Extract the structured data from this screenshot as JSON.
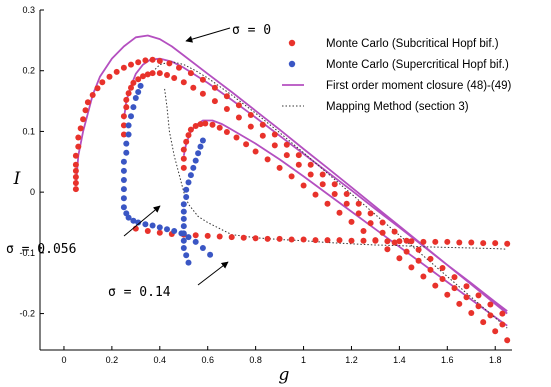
{
  "chart_data": {
    "type": "scatter",
    "xlabel": "g",
    "ylabel": "I",
    "xlim": [
      -0.1,
      1.87
    ],
    "ylim": [
      -0.26,
      0.3
    ],
    "x_ticks": [
      "0",
      "0.2",
      "0.4",
      "0.6",
      "0.8",
      "1",
      "1.2",
      "1.4",
      "1.6",
      "1.8"
    ],
    "y_ticks": [
      "0.3",
      "0.2",
      "0.1",
      "0",
      "-0.1",
      "-0.2"
    ],
    "legend_position": "top-right",
    "legend": [
      {
        "label": "Monte Carlo (Subcritical Hopf bif.)",
        "style": "dot",
        "color": "#e8322b"
      },
      {
        "label": "Monte Carlo (Supercritical Hopf bif.)",
        "style": "dot",
        "color": "#3a56c4"
      },
      {
        "label": "First order moment closure (48)-(49)",
        "style": "line",
        "color": "#b44fc0"
      },
      {
        "label": "Mapping Method (section 3)",
        "style": "dotted",
        "color": "#333333"
      }
    ],
    "annotations": [
      {
        "text": "σ = 0",
        "x": 0.5,
        "y": 0.27
      },
      {
        "text": "σ = 0.056",
        "x": -0.1,
        "y": -0.06
      },
      {
        "text": "σ = 0.14",
        "x": 0.0,
        "y": -0.17
      }
    ],
    "series": [
      {
        "name": "Monte Carlo (Subcritical Hopf bif.)",
        "color": "#e8322b",
        "x": [
          0.05,
          0.05,
          0.05,
          0.05,
          0.05,
          0.05,
          0.06,
          0.06,
          0.07,
          0.08,
          0.09,
          0.1,
          0.12,
          0.14,
          0.16,
          0.19,
          0.22,
          0.25,
          0.28,
          0.31,
          0.34,
          0.37,
          0.4,
          0.44,
          0.48,
          0.53,
          0.58,
          0.63,
          0.68,
          0.73,
          0.78,
          0.83,
          0.88,
          0.93,
          0.98,
          1.03,
          1.08,
          1.13,
          1.18,
          1.23,
          1.28,
          1.33,
          1.38,
          1.43,
          1.48,
          1.53,
          1.58,
          1.63,
          1.68,
          1.73,
          1.78,
          1.83,
          0.25,
          0.25,
          0.25,
          0.26,
          0.26,
          0.27,
          0.28,
          0.29,
          0.31,
          0.33,
          0.35,
          0.37,
          0.4,
          0.43,
          0.46,
          0.5,
          0.54,
          0.58,
          0.63,
          0.68,
          0.73,
          0.78,
          0.83,
          0.88,
          0.93,
          0.98,
          1.03,
          1.08,
          1.13,
          1.18,
          1.23,
          1.28,
          1.33,
          1.38,
          1.43,
          1.48,
          1.53,
          1.58,
          1.63,
          1.68,
          1.73,
          1.78,
          1.83,
          0.5,
          0.5,
          0.5,
          0.51,
          0.52,
          0.53,
          0.55,
          0.57,
          0.59,
          0.62,
          0.65,
          0.68,
          0.72,
          0.76,
          0.8,
          0.85,
          0.9,
          0.95,
          1.0,
          1.05,
          1.1,
          1.15,
          1.2,
          1.25,
          1.3,
          1.35,
          1.4,
          1.45,
          1.5,
          1.55,
          1.6,
          1.65,
          1.7,
          1.75,
          1.8,
          1.85,
          0.3,
          0.35,
          0.4,
          0.45,
          0.5,
          0.55,
          0.6,
          0.65,
          0.7,
          0.75,
          0.8,
          0.85,
          0.9,
          0.95,
          1.0,
          1.05,
          1.1,
          1.15,
          1.2,
          1.25,
          1.3,
          1.35,
          1.4,
          1.45,
          1.5,
          1.55,
          1.6,
          1.65,
          1.7,
          1.75,
          1.8,
          1.85
        ],
        "y": [
          0.005,
          0.015,
          0.025,
          0.035,
          0.045,
          0.06,
          0.075,
          0.09,
          0.105,
          0.12,
          0.135,
          0.148,
          0.16,
          0.171,
          0.181,
          0.19,
          0.198,
          0.205,
          0.21,
          0.214,
          0.217,
          0.218,
          0.216,
          0.212,
          0.205,
          0.196,
          0.185,
          0.172,
          0.158,
          0.143,
          0.127,
          0.111,
          0.095,
          0.078,
          0.061,
          0.045,
          0.029,
          0.013,
          -0.003,
          -0.019,
          -0.035,
          -0.05,
          -0.065,
          -0.08,
          -0.095,
          -0.11,
          -0.125,
          -0.14,
          -0.155,
          -0.17,
          -0.185,
          -0.2,
          0.095,
          0.11,
          0.125,
          0.14,
          0.152,
          0.163,
          0.172,
          0.18,
          0.186,
          0.191,
          0.194,
          0.196,
          0.196,
          0.193,
          0.188,
          0.181,
          0.172,
          0.162,
          0.15,
          0.137,
          0.123,
          0.108,
          0.093,
          0.077,
          0.061,
          0.045,
          0.029,
          0.013,
          -0.003,
          -0.019,
          -0.035,
          -0.051,
          -0.067,
          -0.083,
          -0.098,
          -0.113,
          -0.128,
          -0.143,
          -0.158,
          -0.173,
          -0.188,
          -0.203,
          -0.218,
          0.04,
          0.055,
          0.07,
          0.083,
          0.094,
          0.103,
          0.109,
          0.112,
          0.113,
          0.111,
          0.106,
          0.099,
          0.09,
          0.079,
          0.067,
          0.054,
          0.04,
          0.026,
          0.011,
          -0.004,
          -0.019,
          -0.034,
          -0.049,
          -0.064,
          -0.079,
          -0.094,
          -0.109,
          -0.124,
          -0.139,
          -0.154,
          -0.169,
          -0.184,
          -0.199,
          -0.214,
          -0.229,
          -0.244,
          -0.06,
          -0.064,
          -0.067,
          -0.069,
          -0.07,
          -0.071,
          -0.072,
          -0.073,
          -0.074,
          -0.075,
          -0.076,
          -0.077,
          -0.077,
          -0.078,
          -0.078,
          -0.079,
          -0.079,
          -0.079,
          -0.08,
          -0.08,
          -0.08,
          -0.081,
          -0.081,
          -0.081,
          -0.082,
          -0.082,
          -0.082,
          -0.083,
          -0.083,
          -0.084,
          -0.084,
          -0.085
        ]
      },
      {
        "name": "Monte Carlo (Supercritical Hopf bif.)",
        "color": "#3a56c4",
        "x": [
          0.32,
          0.31,
          0.3,
          0.29,
          0.28,
          0.27,
          0.27,
          0.26,
          0.26,
          0.25,
          0.25,
          0.25,
          0.25,
          0.25,
          0.25,
          0.26,
          0.27,
          0.29,
          0.31,
          0.34,
          0.37,
          0.4,
          0.43,
          0.46,
          0.49,
          0.52,
          0.55,
          0.58,
          0.61,
          0.58,
          0.57,
          0.56,
          0.55,
          0.54,
          0.53,
          0.52,
          0.51,
          0.51,
          0.5,
          0.5,
          0.5,
          0.5,
          0.5,
          0.5,
          0.5,
          0.51,
          0.52
        ],
        "y": [
          0.175,
          0.165,
          0.155,
          0.14,
          0.125,
          0.11,
          0.095,
          0.08,
          0.065,
          0.05,
          0.035,
          0.02,
          0.005,
          -0.01,
          -0.025,
          -0.035,
          -0.042,
          -0.047,
          -0.05,
          -0.053,
          -0.055,
          -0.058,
          -0.061,
          -0.064,
          -0.068,
          -0.074,
          -0.082,
          -0.092,
          -0.103,
          0.085,
          0.075,
          0.064,
          0.052,
          0.04,
          0.028,
          0.016,
          0.004,
          -0.008,
          -0.02,
          -0.032,
          -0.044,
          -0.056,
          -0.068,
          -0.08,
          -0.092,
          -0.104,
          -0.116
        ]
      },
      {
        "name": "First order moment closure (48)-(49)",
        "color": "#b44fc0",
        "x": [
          0.05,
          0.06,
          0.08,
          0.1,
          0.12,
          0.15,
          0.2,
          0.25,
          0.3,
          0.35,
          0.4,
          0.45,
          0.5,
          0.6,
          0.7,
          0.8,
          0.9,
          1.0,
          1.1,
          1.2,
          1.3,
          1.4,
          1.5,
          1.6,
          1.7,
          1.8,
          1.85,
          0.25,
          0.26,
          0.28,
          0.3,
          0.33,
          0.36,
          0.4,
          0.45,
          0.5,
          0.6,
          0.7,
          0.8,
          0.9,
          1.0,
          1.1,
          1.2,
          1.3,
          1.4,
          1.5,
          1.6,
          1.7,
          1.8,
          1.85,
          0.5,
          0.51,
          0.53,
          0.55,
          0.58,
          0.62,
          0.66,
          0.7,
          0.8,
          0.9,
          1.0,
          1.1,
          1.2,
          1.3,
          1.4,
          1.5,
          1.6,
          1.7,
          1.8,
          1.85
        ],
        "y": [
          0.01,
          0.06,
          0.1,
          0.13,
          0.16,
          0.19,
          0.22,
          0.24,
          0.255,
          0.258,
          0.252,
          0.24,
          0.225,
          0.195,
          0.165,
          0.134,
          0.103,
          0.071,
          0.04,
          0.008,
          -0.024,
          -0.056,
          -0.088,
          -0.12,
          -0.152,
          -0.184,
          -0.2,
          0.12,
          0.15,
          0.175,
          0.195,
          0.21,
          0.218,
          0.22,
          0.215,
          0.205,
          0.18,
          0.152,
          0.123,
          0.093,
          0.063,
          0.033,
          0.003,
          -0.028,
          -0.058,
          -0.089,
          -0.12,
          -0.15,
          -0.181,
          -0.196,
          0.06,
          0.08,
          0.1,
          0.11,
          0.118,
          0.118,
          0.112,
          0.103,
          0.08,
          0.054,
          0.026,
          -0.003,
          -0.032,
          -0.061,
          -0.09,
          -0.119,
          -0.148,
          -0.177,
          -0.206,
          -0.22
        ]
      },
      {
        "name": "Mapping Method (section 3)",
        "color": "#333333",
        "x": [
          0.35,
          0.4,
          0.45,
          0.5,
          0.55,
          0.6,
          0.7,
          0.8,
          0.9,
          1.0,
          1.1,
          1.2,
          1.3,
          1.4,
          1.5,
          1.6,
          1.7,
          1.8,
          1.85,
          0.42,
          0.43,
          0.44,
          0.46,
          0.48,
          0.5,
          0.52,
          0.56,
          0.6,
          0.65,
          0.7,
          0.8,
          0.9,
          1.0,
          1.1,
          1.2,
          1.3,
          1.4,
          1.5,
          1.6,
          1.7,
          1.8,
          1.85
        ],
        "y": [
          0.19,
          0.21,
          0.215,
          0.21,
          0.2,
          0.188,
          0.16,
          0.13,
          0.098,
          0.065,
          0.031,
          -0.003,
          -0.037,
          -0.071,
          -0.105,
          -0.139,
          -0.173,
          -0.207,
          -0.224,
          0.17,
          0.14,
          0.1,
          0.06,
          0.03,
          0.0,
          -0.02,
          -0.04,
          -0.05,
          -0.06,
          -0.07,
          -0.075,
          -0.078,
          -0.08,
          -0.083,
          -0.085,
          -0.087,
          -0.088,
          -0.09,
          -0.091,
          -0.092,
          -0.093,
          -0.094
        ]
      }
    ]
  }
}
